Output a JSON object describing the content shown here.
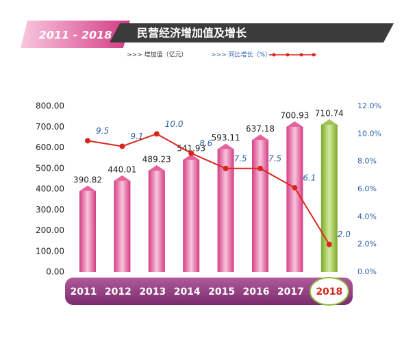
{
  "chart_data": {
    "type": "bar_line",
    "title": "民营经济增加值及增长",
    "subtitle": "2011 - 2018",
    "categories": [
      "2011",
      "2012",
      "2013",
      "2014",
      "2015",
      "2016",
      "2017",
      "2018"
    ],
    "series": [
      {
        "name": ">>> 增加值（亿元）",
        "color": "#e0468c",
        "bar_colors": [
          "#e0468c",
          "#e0468c",
          "#e0468c",
          "#e0468c",
          "#e0468c",
          "#e0468c",
          "#e0468c",
          "#8dbb3c"
        ],
        "values": [
          390.82,
          440.01,
          489.23,
          541.93,
          593.11,
          637.18,
          700.93,
          710.74
        ]
      },
      {
        "name": ">>> 同比增长（%）",
        "color": "#d9261c",
        "axis": "y2",
        "values": [
          9.5,
          9.1,
          10.0,
          8.6,
          7.5,
          7.5,
          6.1,
          2.0
        ],
        "value_labels": [
          "9.5",
          "9.1",
          "10.0",
          "8.6",
          "7.5",
          "7.5",
          "6.1",
          "2.0"
        ]
      }
    ],
    "ylim": [
      0,
      800
    ],
    "yticks": [
      {
        "value": 0,
        "label": "0.00"
      },
      {
        "value": 100,
        "label": "100.00"
      },
      {
        "value": 200,
        "label": "200.00"
      },
      {
        "value": 300,
        "label": "300.00"
      },
      {
        "value": 400,
        "label": "400.00"
      },
      {
        "value": 500,
        "label": "500.00"
      },
      {
        "value": 600,
        "label": "600.00"
      },
      {
        "value": 700,
        "label": "700.00"
      },
      {
        "value": 800,
        "label": "800.00"
      }
    ],
    "y2lim": [
      0,
      12
    ],
    "y2ticks": [
      {
        "value": 0,
        "label": "0.0%"
      },
      {
        "value": 2,
        "label": "2.0%"
      },
      {
        "value": 4,
        "label": "4.0%"
      },
      {
        "value": 6,
        "label": "6.0%"
      },
      {
        "value": 8,
        "label": "8.0%"
      },
      {
        "value": 10,
        "label": "10.0%"
      },
      {
        "value": 12,
        "label": "12.0%"
      }
    ]
  }
}
